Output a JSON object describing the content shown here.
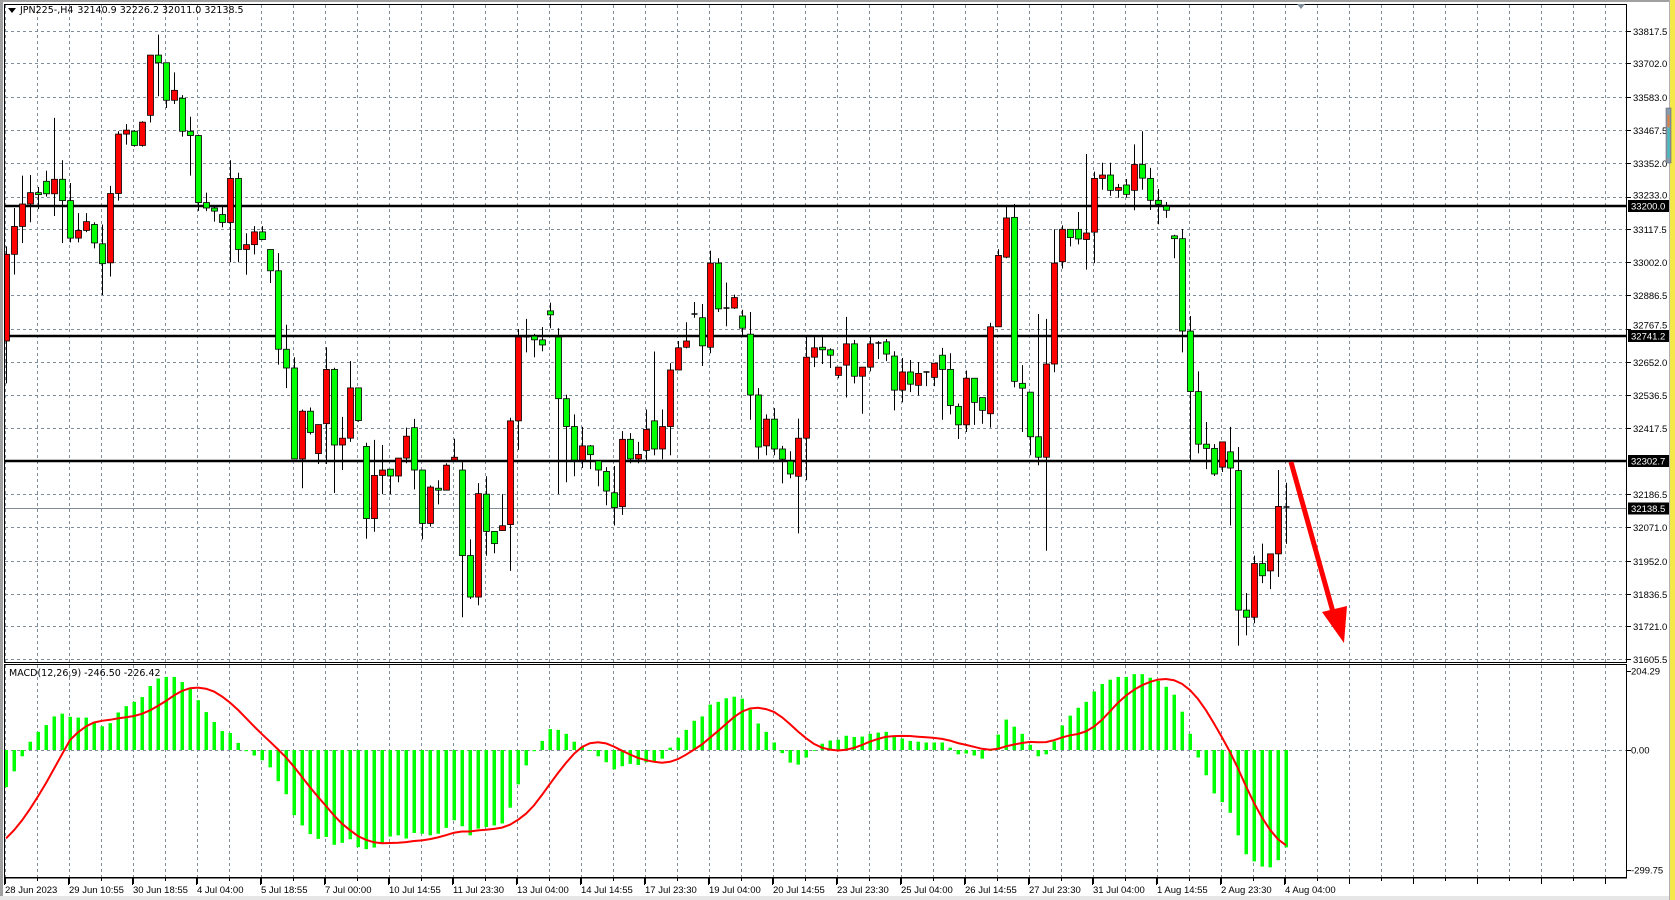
{
  "window": {
    "symbol_header": "JPN225-,H4",
    "ohlc_header": "32140.9 32226.2 32011.0 32138.5"
  },
  "colors": {
    "bull_candle": "#ff0000",
    "bear_candle": "#00ff00",
    "macd_histogram": "#00ff00",
    "macd_signal": "#ff0000",
    "grid": "#7f8c99",
    "level_line": "#000000",
    "annotation_arrow": "#ff0000"
  },
  "chart_data": {
    "type": "candlestick",
    "symbol": "JPN225-",
    "timeframe": "H4",
    "ohlc_order": [
      "open",
      "high",
      "low",
      "close"
    ],
    "ohlc": [
      [
        32725,
        33058,
        32576,
        33030
      ],
      [
        33030,
        33193,
        32959,
        33128
      ],
      [
        33128,
        33307,
        33070,
        33207
      ],
      [
        33207,
        33309,
        33143,
        33247
      ],
      [
        33247,
        33267,
        33189,
        33240
      ],
      [
        33287,
        33324,
        33233,
        33243
      ],
      [
        33243,
        33510,
        33165,
        33294
      ],
      [
        33294,
        33361,
        33070,
        33219
      ],
      [
        33219,
        33281,
        33072,
        33087
      ],
      [
        33087,
        33175,
        33072,
        33114
      ],
      [
        33114,
        33175,
        33108,
        33145
      ],
      [
        33135,
        33143,
        33051,
        33070
      ],
      [
        33067,
        33135,
        32887,
        32997
      ],
      [
        33000,
        33271,
        32952,
        33244
      ],
      [
        33244,
        33463,
        33219,
        33453
      ],
      [
        33453,
        33488,
        33416,
        33467
      ],
      [
        33463,
        33467,
        33409,
        33413
      ],
      [
        33413,
        33498,
        33409,
        33495
      ],
      [
        33519,
        33731,
        33494,
        33731
      ],
      [
        33731,
        33803,
        33586,
        33704
      ],
      [
        33704,
        33704,
        33545,
        33572
      ],
      [
        33572,
        33670,
        33559,
        33607
      ],
      [
        33579,
        33590,
        33444,
        33463
      ],
      [
        33463,
        33514,
        33307,
        33448
      ],
      [
        33448,
        33451,
        33183,
        33212
      ],
      [
        33212,
        33247,
        33182,
        33193
      ],
      [
        33193,
        33200,
        33145,
        33182
      ],
      [
        33170,
        33196,
        33125,
        33142
      ],
      [
        33142,
        33361,
        33002,
        33297
      ],
      [
        33297,
        33317,
        33002,
        33047
      ],
      [
        33047,
        33104,
        32958,
        33064
      ],
      [
        33064,
        33129,
        33030,
        33109
      ],
      [
        33109,
        33129,
        33080,
        33082
      ],
      [
        33047,
        33047,
        32929,
        32972
      ],
      [
        32972,
        33034,
        32642,
        32696
      ],
      [
        32696,
        32782,
        32559,
        32630
      ],
      [
        32630,
        32668,
        32310,
        32310
      ],
      [
        32310,
        32484,
        32207,
        32478
      ],
      [
        32478,
        32491,
        32396,
        32403
      ],
      [
        32329,
        32431,
        32292,
        32431
      ],
      [
        32434,
        32703,
        32292,
        32625
      ],
      [
        32625,
        32631,
        32190,
        32359
      ],
      [
        32359,
        32458,
        32271,
        32383
      ],
      [
        32383,
        32654,
        32370,
        32560
      ],
      [
        32560,
        32560,
        32441,
        32445
      ],
      [
        32354,
        32367,
        32029,
        32100
      ],
      [
        32100,
        32377,
        32054,
        32252
      ],
      [
        32252,
        32359,
        32186,
        32271
      ],
      [
        32274,
        32274,
        32186,
        32250
      ],
      [
        32250,
        32313,
        32228,
        32313
      ],
      [
        32313,
        32420,
        32295,
        32390
      ],
      [
        32420,
        32451,
        32203,
        32271
      ],
      [
        32271,
        32271,
        32027,
        32083
      ],
      [
        32083,
        32217,
        32072,
        32211
      ],
      [
        32207,
        32235,
        32150,
        32200
      ],
      [
        32200,
        32295,
        32200,
        32288
      ],
      [
        32306,
        32381,
        32306,
        32316
      ],
      [
        32271,
        32299,
        31753,
        31970
      ],
      [
        31970,
        32027,
        31817,
        31824
      ],
      [
        31824,
        32225,
        31795,
        32188
      ],
      [
        32186,
        32249,
        31970,
        32055
      ],
      [
        32055,
        32055,
        31978,
        32012
      ],
      [
        32058,
        32186,
        32058,
        32075
      ],
      [
        32079,
        32455,
        31916,
        32444
      ],
      [
        32444,
        32767,
        32342,
        32739
      ],
      [
        32740,
        32803,
        32685,
        32740
      ],
      [
        32742,
        32750,
        32668,
        32729
      ],
      [
        32729,
        32774,
        32689,
        32711
      ],
      [
        32831,
        32860,
        32770,
        32817
      ],
      [
        32739,
        32770,
        32186,
        32522
      ],
      [
        32522,
        32536,
        32228,
        32424
      ],
      [
        32424,
        32467,
        32249,
        32306
      ],
      [
        32306,
        32423,
        32278,
        32356
      ],
      [
        32356,
        32359,
        32274,
        32325
      ],
      [
        32303,
        32303,
        32214,
        32271
      ],
      [
        32266,
        32281,
        32147,
        32197
      ],
      [
        32191,
        32285,
        32076,
        32139
      ],
      [
        32142,
        32408,
        32113,
        32379
      ],
      [
        32379,
        32401,
        32295,
        32310
      ],
      [
        32310,
        32370,
        32295,
        32326
      ],
      [
        32340,
        32484,
        32302,
        32414
      ],
      [
        32444,
        32688,
        32323,
        32345
      ],
      [
        32345,
        32484,
        32309,
        32424
      ],
      [
        32424,
        32647,
        32323,
        32623
      ],
      [
        32623,
        32725,
        32623,
        32701
      ],
      [
        32703,
        32791,
        32699,
        32725
      ],
      [
        32820,
        32862,
        32807,
        32817
      ],
      [
        32807,
        32855,
        32637,
        32708
      ],
      [
        32703,
        33043,
        32682,
        32999
      ],
      [
        32999,
        33016,
        32827,
        32838
      ],
      [
        32841,
        32931,
        32777,
        32838
      ],
      [
        32841,
        32888,
        32838,
        32878
      ],
      [
        32813,
        32835,
        32746,
        32770
      ],
      [
        32749,
        32827,
        32448,
        32535
      ],
      [
        32535,
        32559,
        32309,
        32352
      ],
      [
        32356,
        32467,
        32323,
        32450
      ],
      [
        32450,
        32489,
        32323,
        32345
      ],
      [
        32345,
        32356,
        32224,
        32309
      ],
      [
        32302,
        32337,
        32242,
        32257
      ],
      [
        32249,
        32452,
        32048,
        32383
      ],
      [
        32383,
        32746,
        32235,
        32668
      ],
      [
        32668,
        32739,
        32633,
        32701
      ],
      [
        32703,
        32739,
        32644,
        32694
      ],
      [
        32694,
        32699,
        32630,
        32675
      ],
      [
        32604,
        32633,
        32594,
        32633
      ],
      [
        32640,
        32810,
        32526,
        32715
      ],
      [
        32715,
        32729,
        32576,
        32601
      ],
      [
        32601,
        32633,
        32469,
        32633
      ],
      [
        32633,
        32739,
        32618,
        32715
      ],
      [
        32716,
        32725,
        32661,
        32718
      ],
      [
        32722,
        32732,
        32654,
        32679
      ],
      [
        32672,
        32689,
        32481,
        32552
      ],
      [
        32552,
        32665,
        32509,
        32616
      ],
      [
        32616,
        32658,
        32545,
        32573
      ],
      [
        32569,
        32651,
        32533,
        32611
      ],
      [
        32613,
        32618,
        32566,
        32616
      ],
      [
        32597,
        32647,
        32566,
        32647
      ],
      [
        32675,
        32701,
        32448,
        32625
      ],
      [
        32625,
        32682,
        32467,
        32498
      ],
      [
        32495,
        32505,
        32380,
        32430
      ],
      [
        32430,
        32621,
        32405,
        32594
      ],
      [
        32594,
        32594,
        32430,
        32509
      ],
      [
        32526,
        32526,
        32434,
        32481
      ],
      [
        32469,
        32789,
        32420,
        32775
      ],
      [
        32775,
        33048,
        32775,
        33026
      ],
      [
        33020,
        33200,
        33016,
        33158
      ],
      [
        33160,
        33207,
        32562,
        32583
      ],
      [
        32576,
        32640,
        32405,
        32559
      ],
      [
        32545,
        32545,
        32323,
        32388
      ],
      [
        32388,
        32820,
        32288,
        32316
      ],
      [
        32316,
        32803,
        31987,
        32644
      ],
      [
        32644,
        33118,
        32615,
        32999
      ],
      [
        33004,
        33132,
        32980,
        33118
      ],
      [
        33118,
        33118,
        33058,
        33089
      ],
      [
        33118,
        33179,
        33065,
        33084
      ],
      [
        33082,
        33383,
        32976,
        33105
      ],
      [
        33108,
        33321,
        32999,
        33297
      ],
      [
        33297,
        33352,
        33257,
        33309
      ],
      [
        33309,
        33352,
        33236,
        33255
      ],
      [
        33255,
        33278,
        33229,
        33265
      ],
      [
        33274,
        33295,
        33229,
        33241
      ],
      [
        33255,
        33417,
        33185,
        33346
      ],
      [
        33346,
        33463,
        33257,
        33298
      ],
      [
        33297,
        33334,
        33186,
        33220
      ],
      [
        33220,
        33260,
        33136,
        33206
      ],
      [
        33199,
        33214,
        33158,
        33185
      ],
      [
        33095,
        33099,
        33016,
        33085
      ],
      [
        33085,
        33119,
        32685,
        32760
      ],
      [
        32760,
        32813,
        32306,
        32547
      ],
      [
        32547,
        32618,
        32330,
        32362
      ],
      [
        32362,
        32440,
        32274,
        32347
      ],
      [
        32347,
        32362,
        32250,
        32257
      ],
      [
        32281,
        32370,
        32264,
        32370
      ],
      [
        32335,
        32423,
        32076,
        32278
      ],
      [
        32269,
        32352,
        31653,
        31778
      ],
      [
        31778,
        31838,
        31689,
        31753
      ],
      [
        31753,
        31970,
        31732,
        31942
      ],
      [
        31942,
        32012,
        31873,
        31899
      ],
      [
        31916,
        31976,
        31852,
        31976
      ],
      [
        31976,
        32271,
        31895,
        32143
      ],
      [
        32140.9,
        32226.2,
        32011.0,
        32138.5
      ]
    ],
    "price_axis": {
      "ticks": [
        "33817.5",
        "33702.0",
        "33583.0",
        "33467.5",
        "33352.0",
        "33233.0",
        "33117.5",
        "33002.0",
        "32886.5",
        "32767.5",
        "32652.0",
        "32536.5",
        "32417.5",
        "32186.5",
        "32071.0",
        "31952.0",
        "31836.5",
        "31721.0",
        "31605.5"
      ],
      "range": [
        31605.5,
        33817.5
      ],
      "grid": true
    },
    "horizontal_lines": [
      {
        "price": 33200.0,
        "label": "33200.0"
      },
      {
        "price": 32741.2,
        "label": "32741.2"
      },
      {
        "price": 32302.7,
        "label": "32302.7"
      }
    ],
    "current_price": {
      "price": 32138.5,
      "label": "32138.5"
    },
    "time_labels": [
      "28 Jun 2023",
      "29 Jun 10:55",
      "30 Jun 18:55",
      "4 Jul 04:00",
      "5 Jul 18:55",
      "7 Jul 00:00",
      "10 Jul 14:55",
      "11 Jul 23:30",
      "13 Jul 04:00",
      "14 Jul 14:55",
      "17 Jul 23:30",
      "19 Jul 04:00",
      "20 Jul 14:55",
      "23 Jul 23:30",
      "25 Jul 04:00",
      "26 Jul 14:55",
      "27 Jul 23:30",
      "31 Jul 04:00",
      "1 Aug 14:55",
      "2 Aug 23:30",
      "4 Aug 04:00"
    ],
    "macd": {
      "label": "MACD(12,26,9) -246.50 -226.42",
      "axis_ticks": [
        "204.29",
        "0.00",
        "-299.75"
      ],
      "range": [
        -299.75,
        204.29
      ],
      "signal_period": 9,
      "histogram": [
        -94,
        -54,
        -16,
        21,
        46,
        63,
        85,
        92,
        84,
        82,
        82,
        71,
        60,
        68,
        95,
        111,
        122,
        134,
        162,
        181,
        185,
        185,
        172,
        155,
        126,
        96,
        71,
        48,
        43,
        18,
        -3,
        -14,
        -26,
        -44,
        -79,
        -112,
        -165,
        -191,
        -213,
        -225,
        -220,
        -240,
        -235,
        -226,
        -246,
        -251,
        -247,
        -235,
        -219,
        -216,
        -224,
        -210,
        -212,
        -216,
        -212,
        -197,
        -178,
        -193,
        -216,
        -199,
        -195,
        -191,
        -186,
        -146,
        -87,
        -39,
        -3,
        23,
        53,
        51,
        41,
        21,
        8,
        0,
        -16,
        -31,
        -49,
        -41,
        -35,
        -38,
        -31,
        -28,
        -22,
        6,
        31,
        51,
        74,
        85,
        115,
        122,
        131,
        135,
        130,
        102,
        67,
        46,
        19,
        -8,
        -32,
        -37,
        -19,
        0,
        16,
        24,
        26,
        36,
        33,
        34,
        41,
        44,
        46,
        33,
        29,
        23,
        21,
        19,
        19,
        19,
        6,
        -11,
        -9,
        -14,
        -22,
        0,
        39,
        77,
        59,
        41,
        13,
        -16,
        -11,
        22,
        62,
        87,
        107,
        122,
        148,
        167,
        178,
        185,
        185,
        192,
        192,
        183,
        175,
        160,
        140,
        97,
        41,
        -19,
        -64,
        -110,
        -132,
        -159,
        -216,
        -264,
        -282,
        -295,
        -297,
        -279,
        -246.5
      ]
    },
    "annotation": {
      "type": "arrow",
      "direction": "down"
    }
  }
}
